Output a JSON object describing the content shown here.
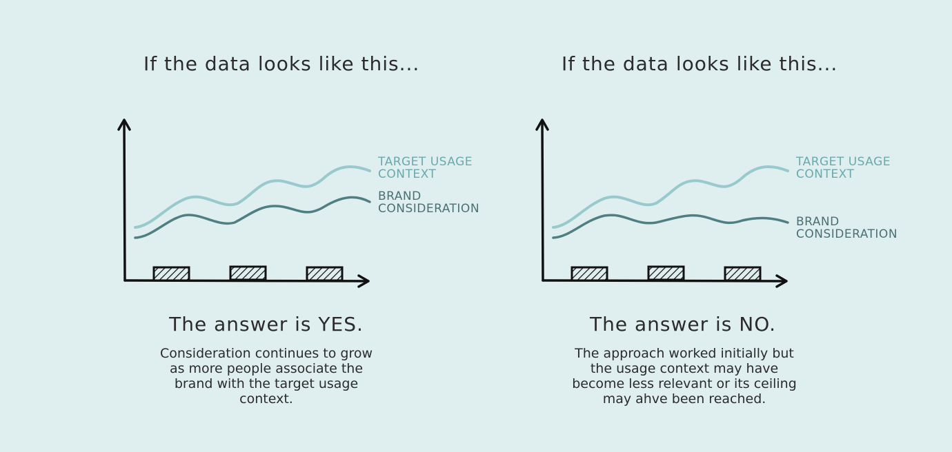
{
  "panels": [
    {
      "heading": "If the data looks like this...",
      "answer": "The answer is YES.",
      "description": "Consideration continues to grow as more people associate the brand with the target usage context.",
      "labels": {
        "target": [
          "TARGET USAGE",
          "CONTEXT"
        ],
        "brand": [
          "BRAND",
          "CONSIDERATION"
        ]
      }
    },
    {
      "heading": "If the data looks like this...",
      "answer": "The answer is NO.",
      "description": "The approach worked initially but the usage context may have become less relevant or its ceiling may ahve been reached.",
      "labels": {
        "target": [
          "TARGET USAGE",
          "CONTEXT"
        ],
        "brand": [
          "BRAND",
          "CONSIDERATION"
        ]
      }
    }
  ],
  "colors": {
    "background": "#dfeeef",
    "target_line": "#98c9cd",
    "brand_line": "#4f7f83",
    "axis": "#111111"
  }
}
